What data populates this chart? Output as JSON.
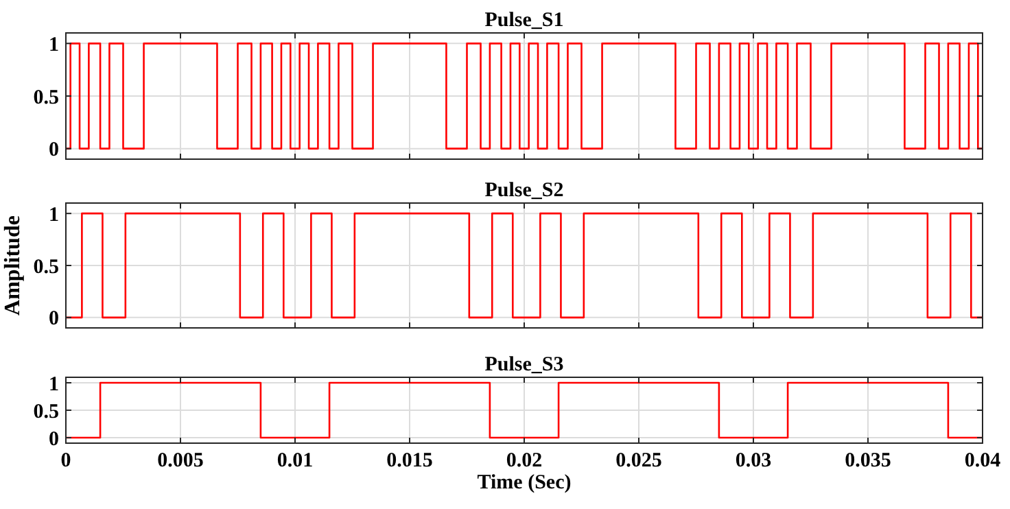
{
  "chart_data": [
    {
      "type": "step",
      "title": "Pulse_S1",
      "xlim": [
        0,
        0.04
      ],
      "ylim": [
        -0.1,
        1.1
      ],
      "yticks": [
        0,
        0.5,
        1
      ],
      "xticks": [
        0,
        0.005,
        0.01,
        0.015,
        0.02,
        0.025,
        0.03,
        0.035,
        0.04
      ],
      "tick_labels": "y",
      "grid": true,
      "series": [
        {
          "color": "#ff0000",
          "x": [
            0,
            0.0002,
            0.0006,
            0.001,
            0.0015,
            0.0019,
            0.0025,
            0.0034,
            0.0066,
            0.0075,
            0.0081,
            0.0085,
            0.009,
            0.0094,
            0.0098,
            0.0102,
            0.0106,
            0.011,
            0.0115,
            0.0119,
            0.0125,
            0.0134,
            0.0166,
            0.0175,
            0.0181,
            0.0185,
            0.019,
            0.0194,
            0.0198,
            0.0202,
            0.0206,
            0.021,
            0.0215,
            0.0219,
            0.0225,
            0.0234,
            0.0266,
            0.0275,
            0.0281,
            0.0285,
            0.029,
            0.0294,
            0.0298,
            0.0302,
            0.0306,
            0.031,
            0.0315,
            0.0319,
            0.0325,
            0.0334,
            0.0366,
            0.0375,
            0.0381,
            0.0385,
            0.039,
            0.0394,
            0.0398,
            0.04
          ],
          "values": [
            0,
            1,
            0,
            1,
            0,
            1,
            0,
            1,
            0,
            1,
            0,
            1,
            0,
            1,
            0,
            1,
            0,
            1,
            0,
            1,
            0,
            1,
            0,
            1,
            0,
            1,
            0,
            1,
            0,
            1,
            0,
            1,
            0,
            1,
            0,
            1,
            0,
            1,
            0,
            1,
            0,
            1,
            0,
            1,
            0,
            1,
            0,
            1,
            0,
            1,
            0,
            1,
            0,
            1,
            0,
            1,
            0,
            0
          ]
        }
      ]
    },
    {
      "type": "step",
      "title": "Pulse_S2",
      "ylabel": "Amplitude",
      "xlim": [
        0,
        0.04
      ],
      "ylim": [
        -0.1,
        1.1
      ],
      "yticks": [
        0,
        0.5,
        1
      ],
      "xticks": [
        0,
        0.005,
        0.01,
        0.015,
        0.02,
        0.025,
        0.03,
        0.035,
        0.04
      ],
      "tick_labels": "y",
      "grid": true,
      "series": [
        {
          "color": "#ff0000",
          "x": [
            0,
            0.0007,
            0.0016,
            0.0026,
            0.0076,
            0.0086,
            0.0095,
            0.0107,
            0.0116,
            0.0126,
            0.0176,
            0.0186,
            0.0195,
            0.0207,
            0.0216,
            0.0226,
            0.0276,
            0.0286,
            0.0295,
            0.0307,
            0.0316,
            0.0326,
            0.0376,
            0.0386,
            0.0395,
            0.04
          ],
          "values": [
            0,
            1,
            0,
            1,
            0,
            1,
            0,
            1,
            0,
            1,
            0,
            1,
            0,
            1,
            0,
            1,
            0,
            1,
            0,
            1,
            0,
            1,
            0,
            1,
            0,
            0
          ]
        }
      ]
    },
    {
      "type": "step",
      "title": "Pulse_S3",
      "xlabel": "Time (Sec)",
      "xlim": [
        0,
        0.04
      ],
      "ylim": [
        -0.1,
        1.1
      ],
      "yticks": [
        0,
        0.5,
        1
      ],
      "xticks": [
        0,
        0.005,
        0.01,
        0.015,
        0.02,
        0.025,
        0.03,
        0.035,
        0.04
      ],
      "grid": true,
      "series": [
        {
          "color": "#ff0000",
          "x": [
            0,
            0.0015,
            0.0085,
            0.0115,
            0.0185,
            0.0215,
            0.0285,
            0.0315,
            0.0385,
            0.04
          ],
          "values": [
            0,
            1,
            0,
            1,
            0,
            1,
            0,
            1,
            0,
            0
          ]
        }
      ]
    }
  ]
}
